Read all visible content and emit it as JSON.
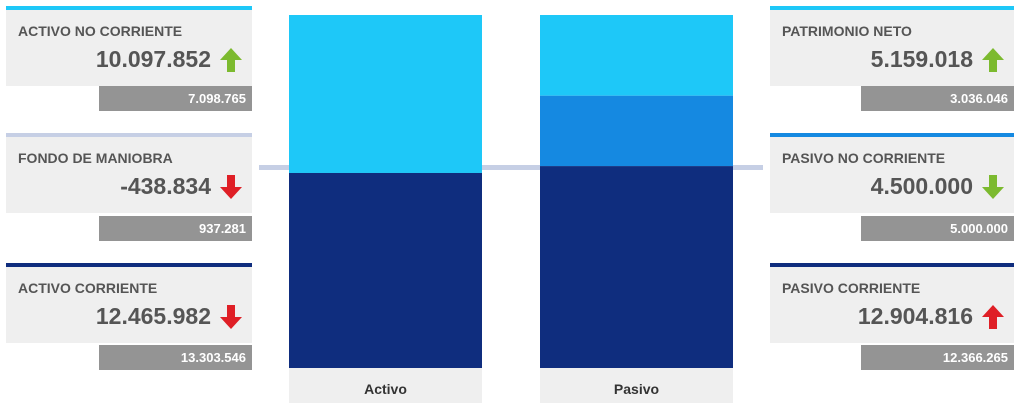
{
  "colors": {
    "accent_light": "#1ec8f8",
    "accent_mid": "#1589e1",
    "accent_dark": "#0f2d7e",
    "divider": "#c6cfe5",
    "card_bg": "#efefef",
    "prev_bg": "#949494",
    "arrow_up": "#7cba2f",
    "arrow_down": "#df1f26"
  },
  "cards": {
    "activo_no_corriente": {
      "label": "ACTIVO NO CORRIENTE",
      "value": "10.097.852",
      "previous": "7.098.765",
      "trend": "up",
      "arrow_color": "#7cba2f",
      "bar_color": "#1ec8f8",
      "arrow_icon": "arrow-up-icon"
    },
    "fondo_de_maniobra": {
      "label": "FONDO DE MANIOBRA",
      "value": "-438.834",
      "previous": "937.281",
      "trend": "down",
      "arrow_color": "#df1f26",
      "bar_color": "#c6cfe5",
      "arrow_icon": "arrow-down-icon"
    },
    "activo_corriente": {
      "label": "ACTIVO CORRIENTE",
      "value": "12.465.982",
      "previous": "13.303.546",
      "trend": "down",
      "arrow_color": "#df1f26",
      "bar_color": "#0f2d7e",
      "arrow_icon": "arrow-down-icon"
    },
    "patrimonio_neto": {
      "label": "PATRIMONIO NETO",
      "value": "5.159.018",
      "previous": "3.036.046",
      "trend": "up",
      "arrow_color": "#7cba2f",
      "bar_color": "#1ec8f8",
      "arrow_icon": "arrow-up-icon"
    },
    "pasivo_no_corriente": {
      "label": "PASIVO NO CORRIENTE",
      "value": "4.500.000",
      "previous": "5.000.000",
      "trend": "down",
      "arrow_color": "#7cba2f",
      "bar_color": "#1589e1",
      "arrow_icon": "arrow-down-icon"
    },
    "pasivo_corriente": {
      "label": "PASIVO CORRIENTE",
      "value": "12.904.816",
      "previous": "12.366.265",
      "trend": "up",
      "arrow_color": "#df1f26",
      "bar_color": "#0f2d7e",
      "arrow_icon": "arrow-up-icon"
    }
  },
  "chart_data": {
    "type": "bar",
    "stacked": true,
    "categories": [
      "Activo",
      "Pasivo"
    ],
    "total": 22563834,
    "series": [
      {
        "key": "activo_no_corriente",
        "color": "#1ec8f8",
        "values": [
          10097852,
          0
        ]
      },
      {
        "key": "activo_corriente",
        "color": "#0f2d7e",
        "values": [
          12465982,
          0
        ]
      },
      {
        "key": "patrimonio_neto",
        "color": "#1ec8f8",
        "values": [
          0,
          5159018
        ]
      },
      {
        "key": "pasivo_no_corriente",
        "color": "#1589e1",
        "values": [
          0,
          4500000
        ]
      },
      {
        "key": "pasivo_corriente",
        "color": "#0f2d7e",
        "values": [
          0,
          12904816
        ]
      }
    ]
  }
}
